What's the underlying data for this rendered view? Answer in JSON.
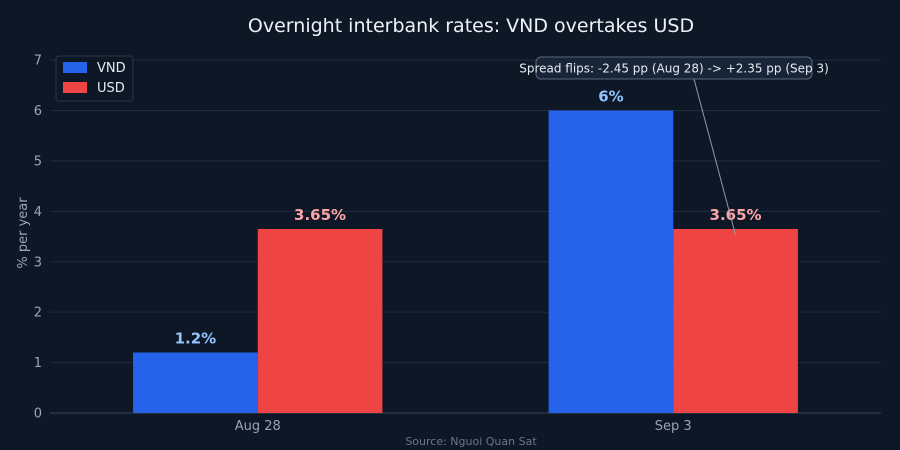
{
  "chart_data": {
    "type": "bar",
    "title": "Overnight interbank rates: VND overtakes USD",
    "ylabel": "% per year",
    "xlabel": "",
    "categories": [
      "Aug 28",
      "Sep 3"
    ],
    "series": [
      {
        "name": "VND",
        "values": [
          1.2,
          6
        ],
        "labels": [
          "1.2%",
          "6%"
        ],
        "color": "#2563eb",
        "label_color": "#93c5fd"
      },
      {
        "name": "USD",
        "values": [
          3.65,
          3.65
        ],
        "labels": [
          "3.65%",
          "3.65%"
        ],
        "color": "#ef4444",
        "label_color": "#fca5a5"
      }
    ],
    "ylim": [
      0,
      7.2
    ],
    "yticks": [
      0,
      1,
      2,
      3,
      4,
      5,
      6,
      7
    ],
    "grid": true,
    "legend": "top-left",
    "annotation": {
      "text": "Spread flips: -2.45 pp (Aug 28) -> +2.35 pp (Sep 3)",
      "category": "Sep 3",
      "series": "USD",
      "value": 3.65
    },
    "source": "Source: Nguoi Quan Sat"
  }
}
